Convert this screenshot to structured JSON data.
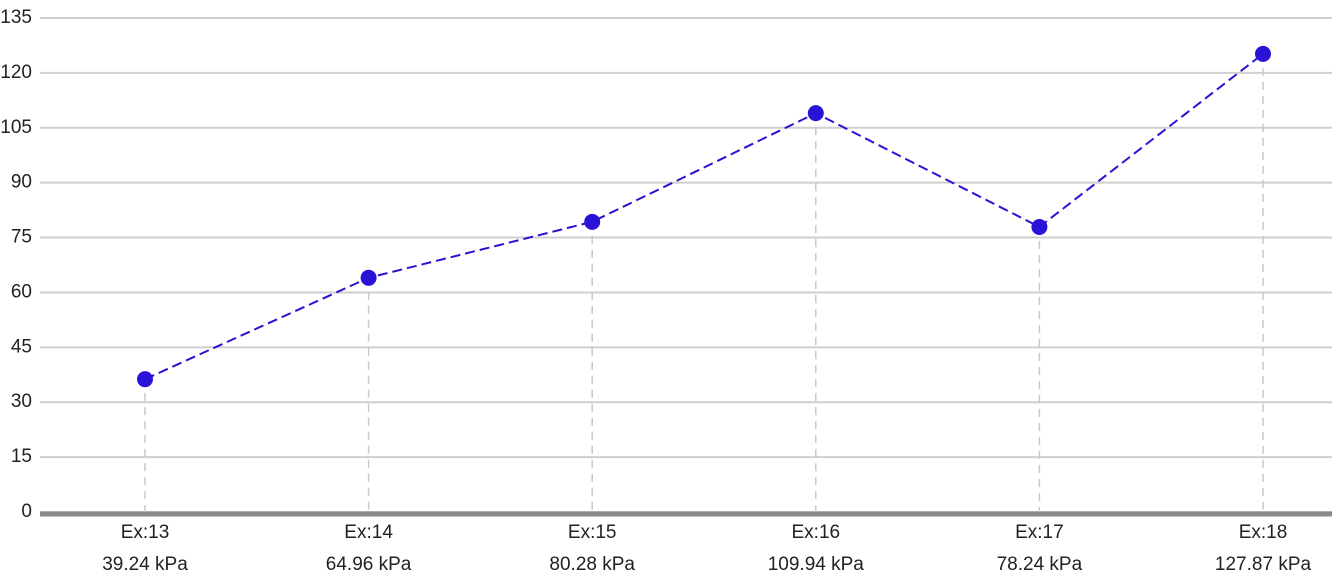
{
  "chart_data": {
    "type": "line",
    "categories": [
      [
        "Ex:13",
        "39.24 kPa"
      ],
      [
        "Ex:14",
        "64.96 kPa"
      ],
      [
        "Ex:15",
        "80.28 kPa"
      ],
      [
        "Ex:16",
        "109.94 kPa"
      ],
      [
        "Ex:17",
        "78.24 kPa"
      ],
      [
        "Ex:18",
        "127.87 kPa"
      ]
    ],
    "values": [
      36.3,
      64,
      79.3,
      109,
      77.9,
      125.2
    ],
    "color": "#2a12d6",
    "ylim": [
      0,
      135
    ],
    "yticks": [
      0,
      15,
      30,
      45,
      60,
      75,
      90,
      105,
      120,
      135
    ],
    "grid": true
  }
}
